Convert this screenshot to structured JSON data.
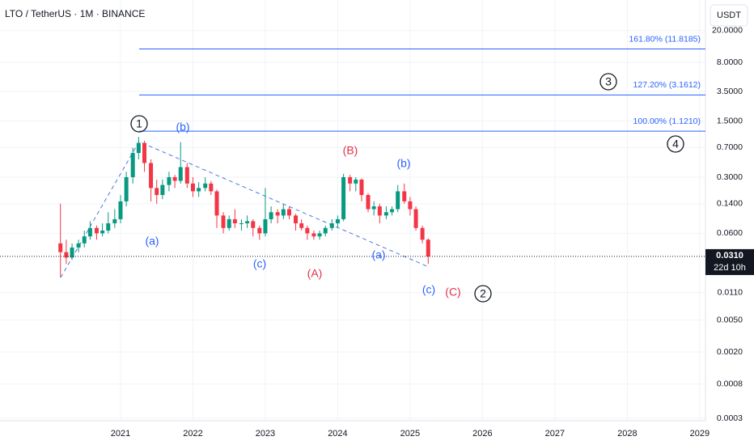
{
  "chart_data": {
    "type": "candlestick",
    "title": "LTO / TetherUS · 1M · BINANCE",
    "currency": "USDT",
    "log_scale": true,
    "grid": true,
    "up_color": "#089981",
    "down_color": "#f23645",
    "xlim": [
      2019.335,
      2029.08
    ],
    "xticks": [
      2021,
      2022,
      2023,
      2024,
      2025,
      2026,
      2027,
      2028,
      2029
    ],
    "ylim": [
      0.00028,
      48
    ],
    "yticks": [
      {
        "value": 20,
        "label": "20.0000"
      },
      {
        "value": 8,
        "label": "8.0000"
      },
      {
        "value": 3.5,
        "label": "3.5000"
      },
      {
        "value": 1.5,
        "label": "1.5000"
      },
      {
        "value": 0.7,
        "label": "0.7000"
      },
      {
        "value": 0.3,
        "label": "0.3000"
      },
      {
        "value": 0.14,
        "label": "0.1400"
      },
      {
        "value": 0.06,
        "label": "0.0600"
      },
      {
        "value": 0.011,
        "label": "0.0110"
      },
      {
        "value": 0.005,
        "label": "0.0050"
      },
      {
        "value": 0.002,
        "label": "0.0020"
      },
      {
        "value": 0.0008,
        "label": "0.0008"
      },
      {
        "value": 0.0003,
        "label": "0.0003"
      }
    ],
    "x": [
      2020.17,
      2020.25,
      2020.33,
      2020.42,
      2020.5,
      2020.58,
      2020.67,
      2020.75,
      2020.83,
      2020.92,
      2021.0,
      2021.08,
      2021.17,
      2021.25,
      2021.33,
      2021.42,
      2021.5,
      2021.58,
      2021.67,
      2021.75,
      2021.83,
      2021.92,
      2022.0,
      2022.08,
      2022.17,
      2022.25,
      2022.33,
      2022.42,
      2022.5,
      2022.58,
      2022.67,
      2022.75,
      2022.83,
      2022.92,
      2023.0,
      2023.08,
      2023.17,
      2023.25,
      2023.33,
      2023.42,
      2023.5,
      2023.58,
      2023.67,
      2023.75,
      2023.83,
      2023.92,
      2024.0,
      2024.08,
      2024.17,
      2024.25,
      2024.33,
      2024.42,
      2024.5,
      2024.58,
      2024.67,
      2024.75,
      2024.83,
      2024.92,
      2025.0,
      2025.08,
      2025.17,
      2025.25
    ],
    "open": [
      0.045,
      0.035,
      0.03,
      0.04,
      0.045,
      0.055,
      0.07,
      0.06,
      0.065,
      0.08,
      0.09,
      0.15,
      0.3,
      0.6,
      0.8,
      0.45,
      0.22,
      0.18,
      0.24,
      0.3,
      0.27,
      0.4,
      0.25,
      0.2,
      0.22,
      0.25,
      0.2,
      0.1,
      0.07,
      0.09,
      0.08,
      0.08,
      0.085,
      0.07,
      0.06,
      0.09,
      0.11,
      0.1,
      0.12,
      0.1,
      0.08,
      0.07,
      0.06,
      0.055,
      0.06,
      0.07,
      0.08,
      0.09,
      0.3,
      0.25,
      0.28,
      0.18,
      0.12,
      0.13,
      0.1,
      0.11,
      0.12,
      0.2,
      0.15,
      0.12,
      0.07,
      0.05
    ],
    "high": [
      0.14,
      0.05,
      0.045,
      0.05,
      0.065,
      0.085,
      0.075,
      0.08,
      0.11,
      0.12,
      0.18,
      0.35,
      0.7,
      0.95,
      0.85,
      0.5,
      0.28,
      0.28,
      0.35,
      0.32,
      0.82,
      0.45,
      0.3,
      0.26,
      0.3,
      0.27,
      0.21,
      0.11,
      0.1,
      0.12,
      0.09,
      0.1,
      0.09,
      0.075,
      0.22,
      0.13,
      0.12,
      0.14,
      0.13,
      0.105,
      0.09,
      0.075,
      0.065,
      0.065,
      0.075,
      0.09,
      0.1,
      0.33,
      0.32,
      0.3,
      0.29,
      0.19,
      0.15,
      0.14,
      0.13,
      0.13,
      0.24,
      0.25,
      0.17,
      0.13,
      0.075,
      0.052
    ],
    "low": [
      0.017,
      0.025,
      0.028,
      0.035,
      0.04,
      0.05,
      0.05,
      0.055,
      0.06,
      0.07,
      0.08,
      0.13,
      0.25,
      0.5,
      0.35,
      0.15,
      0.14,
      0.16,
      0.2,
      0.22,
      0.25,
      0.22,
      0.17,
      0.17,
      0.2,
      0.18,
      0.07,
      0.06,
      0.065,
      0.07,
      0.065,
      0.07,
      0.055,
      0.05,
      0.055,
      0.08,
      0.08,
      0.09,
      0.09,
      0.065,
      0.065,
      0.05,
      0.05,
      0.05,
      0.055,
      0.065,
      0.07,
      0.085,
      0.2,
      0.2,
      0.15,
      0.11,
      0.1,
      0.08,
      0.09,
      0.1,
      0.11,
      0.14,
      0.1,
      0.065,
      0.045,
      0.025
    ],
    "close": [
      0.035,
      0.03,
      0.04,
      0.045,
      0.055,
      0.07,
      0.06,
      0.065,
      0.08,
      0.09,
      0.15,
      0.3,
      0.6,
      0.8,
      0.45,
      0.22,
      0.18,
      0.24,
      0.3,
      0.27,
      0.4,
      0.25,
      0.2,
      0.22,
      0.25,
      0.2,
      0.1,
      0.07,
      0.09,
      0.08,
      0.08,
      0.085,
      0.07,
      0.06,
      0.09,
      0.11,
      0.1,
      0.12,
      0.1,
      0.08,
      0.07,
      0.06,
      0.055,
      0.06,
      0.07,
      0.08,
      0.09,
      0.3,
      0.25,
      0.28,
      0.18,
      0.12,
      0.13,
      0.1,
      0.11,
      0.12,
      0.2,
      0.15,
      0.12,
      0.07,
      0.05,
      0.031
    ],
    "fib_levels": [
      {
        "value": 11.8185,
        "label": "161.80% (11.8185)"
      },
      {
        "value": 3.1612,
        "label": "127.20% (3.1612)"
      },
      {
        "value": 1.121,
        "label": "100.00% (1.1210)"
      }
    ],
    "current_price": {
      "value": 0.031,
      "label": "0.0310"
    },
    "countdown": "22d 10h",
    "annotations": [
      {
        "text": "1",
        "style": "circle",
        "color": "#131722"
      },
      {
        "text": "(b)",
        "style": "plain",
        "color": "#2962ff"
      },
      {
        "text": "(a)",
        "style": "plain",
        "color": "#2962ff"
      },
      {
        "text": "(c)",
        "style": "plain",
        "color": "#2962ff"
      },
      {
        "text": "(A)",
        "style": "plain",
        "color": "#e0304a"
      },
      {
        "text": "(B)",
        "style": "plain",
        "color": "#e0304a"
      },
      {
        "text": "(b)",
        "style": "plain",
        "color": "#2962ff"
      },
      {
        "text": "(a)",
        "style": "plain",
        "color": "#2962ff"
      },
      {
        "text": "(c)",
        "style": "plain",
        "color": "#2962ff"
      },
      {
        "text": "(C)",
        "style": "plain",
        "color": "#e0304a"
      },
      {
        "text": "2",
        "style": "circle",
        "color": "#131722"
      },
      {
        "text": "3",
        "style": "circle",
        "color": "#131722"
      },
      {
        "text": "4",
        "style": "circle",
        "color": "#131722"
      }
    ]
  }
}
